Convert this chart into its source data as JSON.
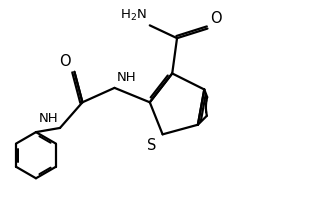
{
  "background_color": "#ffffff",
  "line_color": "#000000",
  "line_width": 1.6,
  "font_size": 9.5,
  "figsize": [
    3.22,
    2.11
  ],
  "dpi": 100,
  "xlim": [
    0,
    10
  ],
  "ylim": [
    0,
    6.5
  ]
}
